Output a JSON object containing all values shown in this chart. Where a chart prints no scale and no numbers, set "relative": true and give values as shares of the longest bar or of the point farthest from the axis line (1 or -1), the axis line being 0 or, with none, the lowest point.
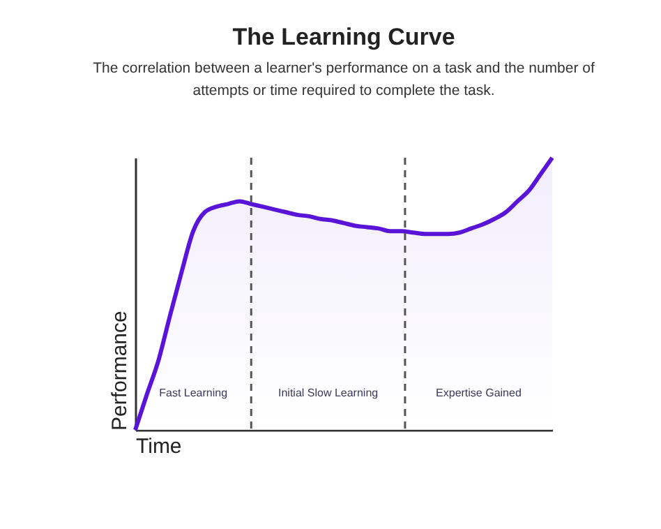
{
  "chart_data": {
    "type": "area",
    "title": "The Learning Curve",
    "subtitle": "The correlation between a learner's performance on a task and the number of attempts or time required to complete the task.",
    "xlabel": "Time",
    "ylabel": "Performance",
    "relative": true,
    "categories": [
      null,
      null,
      null,
      null,
      null,
      null,
      null,
      null,
      null,
      null,
      null,
      null,
      null,
      null,
      null,
      null,
      null,
      null,
      null,
      null,
      null,
      null,
      null,
      null,
      null,
      null,
      null,
      null,
      null,
      null,
      null,
      null,
      null,
      null,
      null,
      null,
      null
    ],
    "series": [
      {
        "color": "#5a14d8",
        "values": [
          0,
          0.13,
          0.255,
          0.42,
          0.58,
          0.73,
          0.8,
          0.82,
          0.83,
          0.84,
          0.83,
          0.82,
          0.81,
          0.8,
          0.79,
          0.785,
          0.775,
          0.77,
          0.76,
          0.75,
          0.745,
          0.74,
          0.73,
          0.73,
          0.725,
          0.72,
          0.72,
          0.72,
          0.725,
          0.74,
          0.755,
          0.775,
          0.8,
          0.84,
          0.88,
          0.94,
          1
        ]
      }
    ],
    "annotations": [
      "Fast Learning",
      "Initial Slow Learning",
      "Expertise Gained"
    ],
    "grid": false
  }
}
